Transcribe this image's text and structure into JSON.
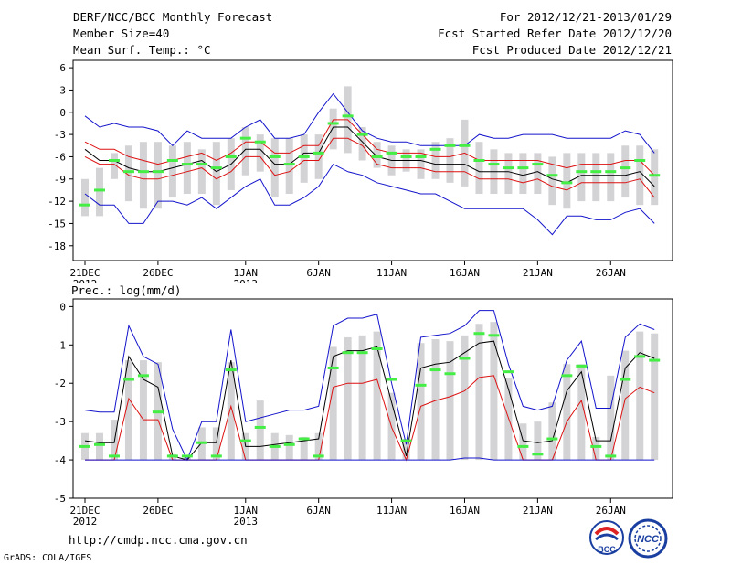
{
  "header": {
    "title": "DERF/NCC/BCC Monthly Forecast",
    "member_size": "Member Size=40",
    "variable": "Mean Surf. Temp.: °C",
    "period": "For 2012/12/21-2013/01/29",
    "started": "Fcst Started Refer Date 2012/12/20",
    "produced": "Fcst Produced Date 2012/12/21"
  },
  "footer": {
    "url": "http://cmdp.ncc.cma.gov.cn",
    "grads": "GrADS: COLA/IGES",
    "logo_bcc_text": "BCC",
    "logo_ncc_text": "NCC"
  },
  "colors": {
    "bar": "#d3d3d6",
    "median": "#44ee44",
    "envelope": "#1414cc",
    "quantile": "#dd1111",
    "mean": "#000000"
  },
  "chart_data": [
    {
      "type": "line",
      "title": "Mean Surf. Temp.: °C",
      "xlabel": "",
      "ylabel": "°C",
      "ylim": [
        -20,
        7
      ],
      "yticks": [
        6,
        3,
        0,
        -3,
        -6,
        -9,
        -12,
        -15,
        -18
      ],
      "x_ticks": [
        {
          "day": 0,
          "label": "21DEC",
          "sub": "2012"
        },
        {
          "day": 5,
          "label": "26DEC",
          "sub": ""
        },
        {
          "day": 11,
          "label": "1JAN",
          "sub": "2013"
        },
        {
          "day": 16,
          "label": "6JAN",
          "sub": ""
        },
        {
          "day": 21,
          "label": "11JAN",
          "sub": ""
        },
        {
          "day": 26,
          "label": "16JAN",
          "sub": ""
        },
        {
          "day": 31,
          "label": "21JAN",
          "sub": ""
        },
        {
          "day": 36,
          "label": "26JAN",
          "sub": ""
        }
      ],
      "series": [
        {
          "name": "max",
          "style": "envelope",
          "values": [
            -0.5,
            -2,
            -1.5,
            -2,
            -2,
            -2.5,
            -4.5,
            -2.5,
            -3.5,
            -3.5,
            -3.5,
            -2,
            -1,
            -3.5,
            -3.5,
            -3,
            0,
            2.5,
            0,
            -2.5,
            -3.5,
            -4,
            -4,
            -4.5,
            -4.5,
            -4.5,
            -4.5,
            -3,
            -3.5,
            -3.5,
            -3,
            -3,
            -3,
            -3.5,
            -3.5,
            -3.5,
            -3.5,
            -2.5,
            -3,
            -5.5
          ]
        },
        {
          "name": "p75",
          "style": "quantile",
          "values": [
            -4,
            -5,
            -5,
            -6,
            -6.5,
            -7,
            -6.5,
            -6,
            -5.5,
            -6.5,
            -5.5,
            -4,
            -4,
            -5.5,
            -5.5,
            -4.5,
            -4.5,
            -1,
            -1,
            -3,
            -5,
            -5.5,
            -5.5,
            -5.5,
            -6,
            -6,
            -5.5,
            -6.5,
            -6.5,
            -6.5,
            -6.5,
            -6.5,
            -7,
            -7.5,
            -7,
            -7,
            -7,
            -6.5,
            -6.5,
            -8.5
          ]
        },
        {
          "name": "mean",
          "style": "mean",
          "values": [
            -5,
            -6.5,
            -6.5,
            -7.5,
            -8,
            -8,
            -7.5,
            -7,
            -6.5,
            -8,
            -7,
            -5,
            -5,
            -7,
            -7,
            -5.5,
            -5.5,
            -2,
            -2,
            -4,
            -6,
            -6.5,
            -6.5,
            -6.5,
            -7,
            -7,
            -7,
            -8,
            -8,
            -8,
            -8.5,
            -8,
            -9,
            -9.5,
            -8.5,
            -8.5,
            -8.5,
            -8.5,
            -8,
            -10
          ]
        },
        {
          "name": "p25",
          "style": "quantile",
          "values": [
            -6,
            -7,
            -7,
            -8.5,
            -9,
            -9,
            -8.5,
            -8,
            -7.5,
            -9,
            -8,
            -6,
            -6,
            -8.5,
            -8,
            -6.5,
            -6.5,
            -3.5,
            -3.5,
            -4.5,
            -7,
            -7.5,
            -7.5,
            -7.5,
            -8,
            -8,
            -8,
            -9,
            -9,
            -9,
            -9.5,
            -9,
            -10,
            -10.5,
            -9.5,
            -9.5,
            -9.5,
            -9.5,
            -9,
            -11.5
          ]
        },
        {
          "name": "min",
          "style": "envelope",
          "values": [
            -11,
            -12.5,
            -12.5,
            -15,
            -15,
            -12,
            -12,
            -12.5,
            -11.5,
            -13,
            -11.5,
            -10,
            -9,
            -12.5,
            -12.5,
            -11.5,
            -10,
            -7,
            -8,
            -8.5,
            -9.5,
            -10,
            -10.5,
            -11,
            -11,
            -12,
            -13,
            -13,
            -13,
            -13,
            -13,
            -14.5,
            -16.5,
            -14,
            -14,
            -14.5,
            -14.5,
            -13.5,
            -13,
            -15
          ]
        }
      ],
      "bars": {
        "low": [
          -14,
          -14,
          -9,
          -12,
          -13,
          -13,
          -11.5,
          -11,
          -11,
          -12.5,
          -10.5,
          -8.5,
          -8,
          -11.5,
          -11,
          -9.5,
          -9,
          -5,
          -5.5,
          -6.5,
          -7.5,
          -8.5,
          -8,
          -9,
          -9,
          -9.5,
          -10,
          -11,
          -11,
          -11,
          -11,
          -11,
          -12.5,
          -13,
          -12,
          -12,
          -12,
          -11.5,
          -12.5,
          -12.5
        ],
        "high": [
          -9,
          -7.5,
          -5.5,
          -4.5,
          -4,
          -4,
          -4.5,
          -4,
          -5,
          -4,
          -3.5,
          -2,
          -3,
          -3.5,
          -3.5,
          -3,
          -3,
          0.5,
          3.5,
          -2,
          -4,
          -4.5,
          -5,
          -5,
          -4,
          -3.5,
          -1,
          -4,
          -5,
          -5.5,
          -5.5,
          -5.5,
          -6,
          -5.5,
          -5.5,
          -5.5,
          -5.5,
          -4.5,
          -4.5,
          -5
        ]
      },
      "median": [
        -12.5,
        -10.5,
        -6.5,
        -8,
        -8,
        -8,
        -6.5,
        -7,
        -7,
        -7.5,
        -6,
        -3.5,
        -4,
        -6,
        -7,
        -6,
        -5.5,
        -1.5,
        -0.5,
        -3,
        -6,
        -5.5,
        -6,
        -6,
        -5,
        -4.5,
        -4.5,
        -6.5,
        -7,
        -7.5,
        -7.5,
        -7,
        -8.5,
        -9.5,
        -8,
        -8,
        -8,
        -7.5,
        -6.5,
        -8.5
      ]
    },
    {
      "type": "line",
      "title": "Prec.: log(mm/d)",
      "xlabel": "",
      "ylabel": "log(mm/d)",
      "ylim": [
        -5,
        0.2
      ],
      "yticks": [
        0,
        -1,
        -2,
        -3,
        -4,
        -5
      ],
      "x_ticks": [
        {
          "day": 0,
          "label": "21DEC",
          "sub": "2012"
        },
        {
          "day": 5,
          "label": "26DEC",
          "sub": ""
        },
        {
          "day": 11,
          "label": "1JAN",
          "sub": "2013"
        },
        {
          "day": 16,
          "label": "6JAN",
          "sub": ""
        },
        {
          "day": 21,
          "label": "11JAN",
          "sub": ""
        },
        {
          "day": 26,
          "label": "16JAN",
          "sub": ""
        },
        {
          "day": 31,
          "label": "21JAN",
          "sub": ""
        },
        {
          "day": 36,
          "label": "26JAN",
          "sub": ""
        }
      ],
      "series": [
        {
          "name": "max",
          "style": "envelope",
          "values": [
            -2.7,
            -2.75,
            -2.75,
            -0.5,
            -1.3,
            -1.5,
            -3.2,
            -4,
            -3,
            -3,
            -0.6,
            -3,
            -2.9,
            -2.8,
            -2.7,
            -2.7,
            -2.6,
            -0.5,
            -0.3,
            -0.3,
            -0.2,
            -2,
            -3.6,
            -0.8,
            -0.75,
            -0.7,
            -0.5,
            -0.1,
            -0.1,
            -1.5,
            -2.6,
            -2.7,
            -2.6,
            -1.4,
            -0.9,
            -2.65,
            -2.65,
            -0.8,
            -0.45,
            -0.6
          ]
        },
        {
          "name": "mean",
          "style": "mean",
          "values": [
            -3.5,
            -3.55,
            -3.55,
            -1.3,
            -1.9,
            -2.1,
            -3.9,
            -4,
            -3.55,
            -3.55,
            -1.4,
            -3.65,
            -3.65,
            -3.6,
            -3.55,
            -3.5,
            -3.45,
            -1.3,
            -1.15,
            -1.15,
            -1.05,
            -2.5,
            -3.9,
            -1.6,
            -1.5,
            -1.45,
            -1.2,
            -0.95,
            -0.9,
            -2.15,
            -3.5,
            -3.55,
            -3.5,
            -2.2,
            -1.7,
            -3.5,
            -3.5,
            -1.6,
            -1.2,
            -1.35
          ]
        },
        {
          "name": "p75",
          "style": "quantile",
          "values": [
            -4,
            -4,
            -4,
            -2.4,
            -2.95,
            -2.95,
            -4,
            -4,
            -4,
            -4,
            -2.6,
            -4,
            -4,
            -4,
            -4,
            -4,
            -4,
            -2.1,
            -2,
            -2,
            -1.9,
            -3.15,
            -4,
            -2.6,
            -2.45,
            -2.35,
            -2.2,
            -1.85,
            -1.8,
            -2.9,
            -4,
            -4,
            -4,
            -3,
            -2.45,
            -4,
            -4,
            -2.4,
            -2.1,
            -2.25
          ]
        },
        {
          "name": "min",
          "style": "envelope",
          "values": [
            -4,
            -4,
            -4,
            -4,
            -4,
            -4,
            -4,
            -4,
            -4,
            -4,
            -4,
            -4,
            -4,
            -4,
            -4,
            -4,
            -4,
            -4,
            -4,
            -4,
            -4,
            -4,
            -4,
            -4,
            -4,
            -4,
            -3.95,
            -3.95,
            -4,
            -4,
            -4,
            -4,
            -4,
            -4,
            -4,
            -4,
            -4,
            -4,
            -4,
            -4
          ]
        }
      ],
      "bars": {
        "low": [
          -4,
          -4,
          -4,
          -4,
          -4,
          -4,
          -4,
          -4,
          -4,
          -4,
          -4,
          -4,
          -4,
          -4,
          -4,
          -4,
          -4,
          -4,
          -4,
          -4,
          -4,
          -4,
          -4,
          -4,
          -4,
          -4,
          -4,
          -4,
          -4,
          -4,
          -4,
          -4,
          -4,
          -4,
          -4,
          -4,
          -4,
          -4,
          -4,
          -4
        ],
        "high": [
          -3.3,
          -3.3,
          -2.95,
          -1.4,
          -1.4,
          -1.45,
          -3.85,
          -3.9,
          -3.15,
          -3.15,
          -1.45,
          -3.3,
          -2.45,
          -3.3,
          -3.35,
          -3.4,
          -3.3,
          -1.05,
          -0.8,
          -0.75,
          -0.65,
          -2.25,
          -3.45,
          -0.95,
          -0.85,
          -0.9,
          -0.75,
          -0.45,
          -0.4,
          -1.85,
          -3.05,
          -3,
          -2.5,
          -1.5,
          -1.5,
          -3.4,
          -1.8,
          -1.15,
          -0.65,
          -0.7
        ]
      },
      "median": [
        -3.65,
        -3.6,
        -3.9,
        -1.9,
        -1.8,
        -2.75,
        -3.9,
        -3.9,
        -3.55,
        -3.9,
        -1.65,
        -3.5,
        -3.15,
        -3.65,
        -3.6,
        -3.45,
        -3.9,
        -1.6,
        -1.2,
        -1.2,
        -1.1,
        -1.9,
        -3.5,
        -2.05,
        -1.65,
        -1.75,
        -1.35,
        -0.7,
        -0.75,
        -1.7,
        -3.65,
        -3.85,
        -3.45,
        -1.8,
        -1.55,
        -3.65,
        -3.9,
        -1.9,
        -1.3,
        -1.4
      ]
    }
  ]
}
